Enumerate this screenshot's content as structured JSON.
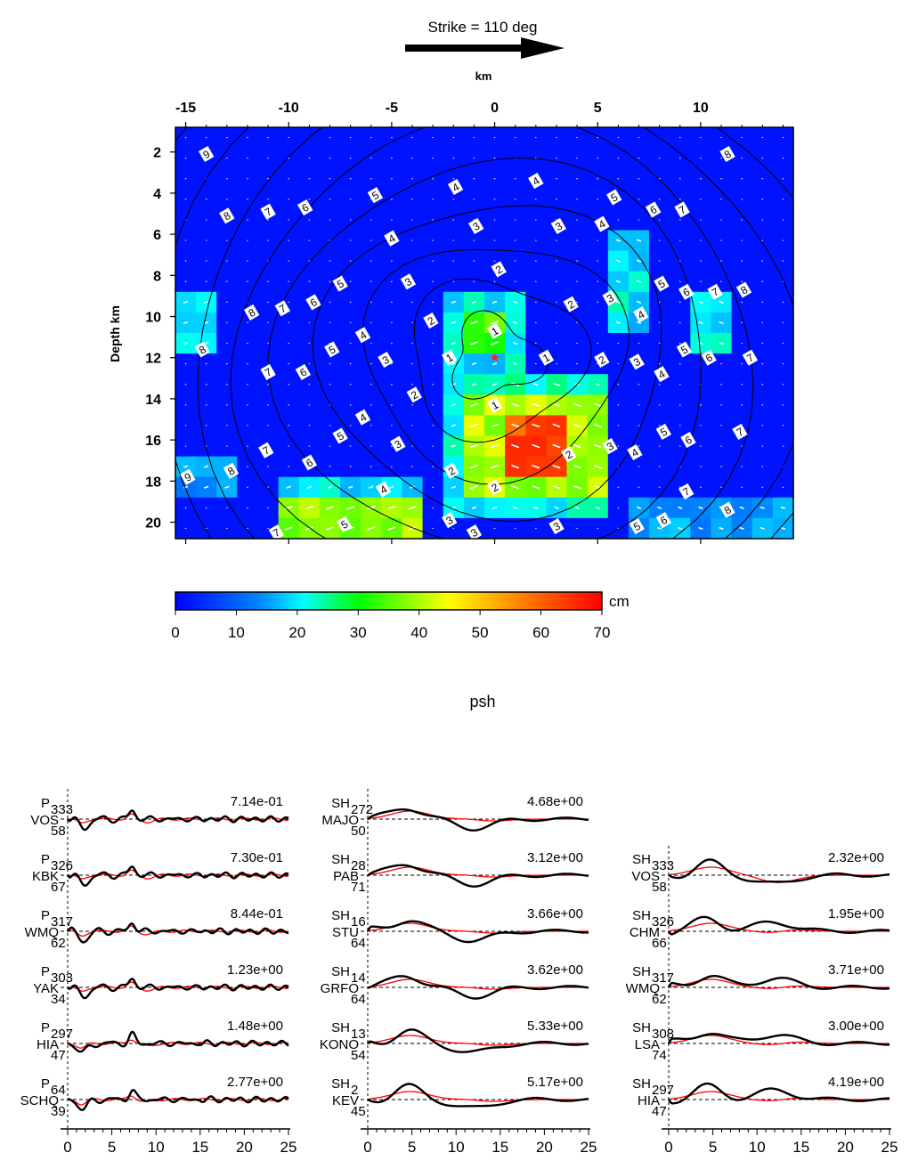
{
  "header": {
    "strike_label": "Strike = 110 deg",
    "x_axis_label": "km",
    "y_axis_label": "Depth km",
    "colorbar_unit": "cm",
    "section_title": "psh"
  },
  "colors": {
    "observed": "#000000",
    "synthetic": "#ff0000",
    "hypocenter": "#ff2020"
  },
  "chart_data": [
    {
      "type": "heatmap",
      "x_ticks": [
        "-15",
        "-10",
        "-5",
        "0",
        "5",
        "10"
      ],
      "x_tick_values": [
        -15,
        -10,
        -5,
        0,
        5,
        10
      ],
      "y_ticks": [
        "2",
        "4",
        "6",
        "8",
        "10",
        "12",
        "14",
        "16",
        "18",
        "20"
      ],
      "y_tick_values": [
        2,
        4,
        6,
        8,
        10,
        12,
        14,
        16,
        18,
        20
      ],
      "xlim": [
        -15.5,
        14.5
      ],
      "ylim": [
        0.8,
        20.8
      ],
      "colorbar": {
        "range": [
          0,
          70
        ],
        "ticks": [
          "0",
          "10",
          "20",
          "30",
          "40",
          "50",
          "60",
          "70"
        ],
        "unit": "cm"
      },
      "hypocenter": {
        "x": 0,
        "y": 12
      },
      "slip_patches": [
        {
          "x0": 1,
          "x1": 3.5,
          "y0": 15,
          "y1": 17.5,
          "slip": 62
        },
        {
          "x0": -1.5,
          "x1": 5,
          "y0": 13.5,
          "y1": 18.5,
          "slip": 40
        },
        {
          "x0": -2.5,
          "x1": 5.5,
          "y0": 13,
          "y1": 19.5,
          "slip": 22
        },
        {
          "x0": -1.5,
          "x1": 0.5,
          "y0": 9.5,
          "y1": 12,
          "slip": 33
        },
        {
          "x0": -2.5,
          "x1": 1,
          "y0": 8.5,
          "y1": 13,
          "slip": 20
        },
        {
          "x0": -10,
          "x1": -4,
          "y0": 19,
          "y1": 20.8,
          "slip": 38
        },
        {
          "x0": -10.5,
          "x1": -3.5,
          "y0": 17.5,
          "y1": 20.8,
          "slip": 20
        },
        {
          "x0": 5.5,
          "x1": 7.5,
          "y0": 6,
          "y1": 10.5,
          "slip": 20
        },
        {
          "x0": 9.5,
          "x1": 11.5,
          "y0": 8.5,
          "y1": 11.5,
          "slip": 20
        },
        {
          "x0": -15.5,
          "x1": -13.5,
          "y0": 8.5,
          "y1": 12,
          "slip": 18
        },
        {
          "x0": 7,
          "x1": 14.5,
          "y0": 18.5,
          "y1": 20.8,
          "slip": 16
        },
        {
          "x0": -15.5,
          "x1": -13,
          "y0": 16.5,
          "y1": 19,
          "slip": 14
        }
      ],
      "rupture_time_contours": [
        1,
        2,
        3,
        4,
        5,
        6,
        7,
        8,
        9
      ],
      "contour_labels": [
        {
          "x": 0,
          "y": 10.7,
          "t": "1"
        },
        {
          "x": -2.2,
          "y": 12,
          "t": "1"
        },
        {
          "x": 2.5,
          "y": 12,
          "t": "1"
        },
        {
          "x": 0,
          "y": 14.3,
          "t": "1"
        },
        {
          "x": 0.2,
          "y": 7.7,
          "t": "2"
        },
        {
          "x": -3.1,
          "y": 10.2,
          "t": "2"
        },
        {
          "x": 3.7,
          "y": 9.4,
          "t": "2"
        },
        {
          "x": -3.9,
          "y": 13.8,
          "t": "2"
        },
        {
          "x": 5.2,
          "y": 12.1,
          "t": "2"
        },
        {
          "x": 3.6,
          "y": 16.7,
          "t": "2"
        },
        {
          "x": -2.1,
          "y": 17.5,
          "t": "2"
        },
        {
          "x": 0,
          "y": 18.3,
          "t": "2"
        },
        {
          "x": -0.9,
          "y": 5.6,
          "t": "3"
        },
        {
          "x": 3.1,
          "y": 5.6,
          "t": "3"
        },
        {
          "x": -4.2,
          "y": 8.3,
          "t": "3"
        },
        {
          "x": -5.3,
          "y": 12.1,
          "t": "3"
        },
        {
          "x": 5.6,
          "y": 9.1,
          "t": "3"
        },
        {
          "x": 6.9,
          "y": 12.2,
          "t": "3"
        },
        {
          "x": -4.7,
          "y": 16.2,
          "t": "3"
        },
        {
          "x": 5.6,
          "y": 16.3,
          "t": "3"
        },
        {
          "x": -2.2,
          "y": 19.9,
          "t": "3"
        },
        {
          "x": -1,
          "y": 20.5,
          "t": "3"
        },
        {
          "x": 3,
          "y": 20.2,
          "t": "3"
        },
        {
          "x": -1.9,
          "y": 3.7,
          "t": "4"
        },
        {
          "x": 2,
          "y": 3.4,
          "t": "4"
        },
        {
          "x": -5,
          "y": 6.2,
          "t": "4"
        },
        {
          "x": 5.2,
          "y": 5.5,
          "t": "4"
        },
        {
          "x": -6.4,
          "y": 10.9,
          "t": "4"
        },
        {
          "x": 7.1,
          "y": 9.9,
          "t": "4"
        },
        {
          "x": 8.1,
          "y": 12.8,
          "t": "4"
        },
        {
          "x": -6.4,
          "y": 14.9,
          "t": "4"
        },
        {
          "x": 6.8,
          "y": 16.6,
          "t": "4"
        },
        {
          "x": -5.4,
          "y": 18.4,
          "t": "4"
        },
        {
          "x": -5.8,
          "y": 4.1,
          "t": "5"
        },
        {
          "x": 5.8,
          "y": 4.2,
          "t": "5"
        },
        {
          "x": -7.5,
          "y": 8.4,
          "t": "5"
        },
        {
          "x": 8.1,
          "y": 8.4,
          "t": "5"
        },
        {
          "x": -7.9,
          "y": 11.6,
          "t": "5"
        },
        {
          "x": 9.2,
          "y": 11.6,
          "t": "5"
        },
        {
          "x": -7.5,
          "y": 15.8,
          "t": "5"
        },
        {
          "x": 8.2,
          "y": 15.6,
          "t": "5"
        },
        {
          "x": -7.3,
          "y": 20.1,
          "t": "5"
        },
        {
          "x": 6.9,
          "y": 20.2,
          "t": "5"
        },
        {
          "x": -9.2,
          "y": 4.7,
          "t": "6"
        },
        {
          "x": 7.7,
          "y": 4.8,
          "t": "6"
        },
        {
          "x": -8.8,
          "y": 9.3,
          "t": "6"
        },
        {
          "x": 9.3,
          "y": 8.8,
          "t": "6"
        },
        {
          "x": -9.3,
          "y": 12.7,
          "t": "6"
        },
        {
          "x": 10.4,
          "y": 12,
          "t": "6"
        },
        {
          "x": -9,
          "y": 17.1,
          "t": "6"
        },
        {
          "x": 9.4,
          "y": 16,
          "t": "6"
        },
        {
          "x": 8.2,
          "y": 19.9,
          "t": "6"
        },
        {
          "x": -11,
          "y": 4.9,
          "t": "7"
        },
        {
          "x": 9.1,
          "y": 4.8,
          "t": "7"
        },
        {
          "x": -10.3,
          "y": 9.6,
          "t": "7"
        },
        {
          "x": 10.7,
          "y": 8.8,
          "t": "7"
        },
        {
          "x": -11,
          "y": 12.7,
          "t": "7"
        },
        {
          "x": 12.4,
          "y": 12,
          "t": "7"
        },
        {
          "x": -11.1,
          "y": 16.5,
          "t": "7"
        },
        {
          "x": 11.9,
          "y": 15.6,
          "t": "7"
        },
        {
          "x": 9.3,
          "y": 18.5,
          "t": "7"
        },
        {
          "x": -10.6,
          "y": 20.5,
          "t": "7"
        },
        {
          "x": 11.3,
          "y": 2.1,
          "t": "8"
        },
        {
          "x": -13,
          "y": 5.1,
          "t": "8"
        },
        {
          "x": -11.8,
          "y": 9.8,
          "t": "8"
        },
        {
          "x": 12.1,
          "y": 8.7,
          "t": "8"
        },
        {
          "x": -14.2,
          "y": 11.6,
          "t": "8"
        },
        {
          "x": -12.8,
          "y": 17.5,
          "t": "8"
        },
        {
          "x": 11.3,
          "y": 19.4,
          "t": "8"
        },
        {
          "x": -14,
          "y": 2.1,
          "t": "9"
        },
        {
          "x": -14.9,
          "y": 17.8,
          "t": "9"
        }
      ]
    },
    {
      "type": "line",
      "title": "psh",
      "x_ticks": [
        "0",
        "5",
        "10",
        "15",
        "20",
        "25"
      ],
      "xlim": [
        0,
        25
      ],
      "series": [
        {
          "component": "P",
          "name": "VOS",
          "azimuth": "333",
          "distance": "58",
          "amplitude": "7.14e-01",
          "column": 0,
          "row": 0
        },
        {
          "component": "P",
          "name": "KBK",
          "azimuth": "326",
          "distance": "67",
          "amplitude": "7.30e-01",
          "column": 0,
          "row": 1
        },
        {
          "component": "P",
          "name": "WMQ",
          "azimuth": "317",
          "distance": "62",
          "amplitude": "8.44e-01",
          "column": 0,
          "row": 2
        },
        {
          "component": "P",
          "name": "YAK",
          "azimuth": "303",
          "distance": "34",
          "amplitude": "1.23e+00",
          "column": 0,
          "row": 3
        },
        {
          "component": "P",
          "name": "HIA",
          "azimuth": "297",
          "distance": "47",
          "amplitude": "1.48e+00",
          "column": 0,
          "row": 4
        },
        {
          "component": "P",
          "name": "SCHQ",
          "azimuth": "64",
          "distance": "39",
          "amplitude": "2.77e+00",
          "column": 0,
          "row": 5
        },
        {
          "component": "SH",
          "name": "MAJO",
          "azimuth": "272",
          "distance": "50",
          "amplitude": "4.68e+00",
          "column": 1,
          "row": 0
        },
        {
          "component": "SH",
          "name": "PAB",
          "azimuth": "28",
          "distance": "71",
          "amplitude": "3.12e+00",
          "column": 1,
          "row": 1
        },
        {
          "component": "SH",
          "name": "STU",
          "azimuth": "16",
          "distance": "64",
          "amplitude": "3.66e+00",
          "column": 1,
          "row": 2
        },
        {
          "component": "SH",
          "name": "GRFO",
          "azimuth": "14",
          "distance": "64",
          "amplitude": "3.62e+00",
          "column": 1,
          "row": 3
        },
        {
          "component": "SH",
          "name": "KONO",
          "azimuth": "13",
          "distance": "54",
          "amplitude": "5.33e+00",
          "column": 1,
          "row": 4
        },
        {
          "component": "SH",
          "name": "KEV",
          "azimuth": "2",
          "distance": "45",
          "amplitude": "5.17e+00",
          "column": 1,
          "row": 5
        },
        {
          "component": "SH",
          "name": "VOS",
          "azimuth": "333",
          "distance": "58",
          "amplitude": "2.32e+00",
          "column": 2,
          "row": 1
        },
        {
          "component": "SH",
          "name": "CHM",
          "azimuth": "326",
          "distance": "66",
          "amplitude": "1.95e+00",
          "column": 2,
          "row": 2
        },
        {
          "component": "SH",
          "name": "WMQ",
          "azimuth": "317",
          "distance": "62",
          "amplitude": "3.71e+00",
          "column": 2,
          "row": 3
        },
        {
          "component": "SH",
          "name": "LSA",
          "azimuth": "308",
          "distance": "74",
          "amplitude": "3.00e+00",
          "column": 2,
          "row": 4
        },
        {
          "component": "SH",
          "name": "HIA",
          "azimuth": "297",
          "distance": "47",
          "amplitude": "4.19e+00",
          "column": 2,
          "row": 5
        }
      ]
    }
  ]
}
